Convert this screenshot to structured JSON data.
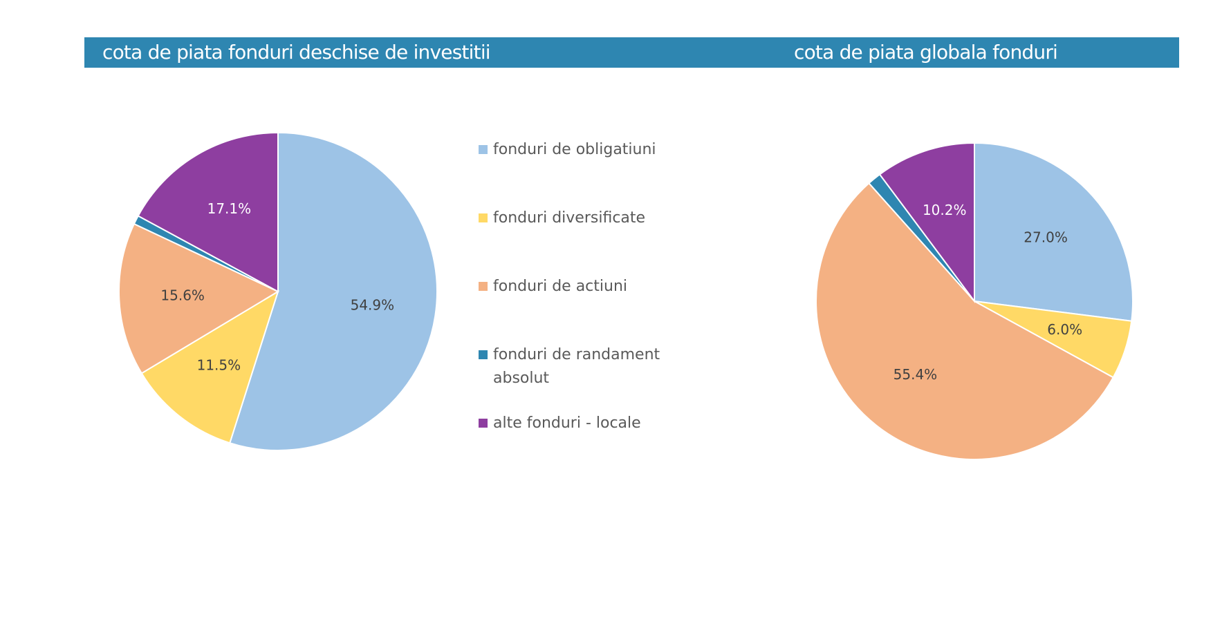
{
  "headers": {
    "left_title": "cota de piata fonduri deschise de investitii",
    "right_title": "cota de piata globala fonduri",
    "band_color": "#2e86b1"
  },
  "legend": {
    "items": [
      {
        "label": "fonduri de obligatiuni",
        "color": "#9dc3e6"
      },
      {
        "label": "fonduri diversificate",
        "color": "#ffd966"
      },
      {
        "label": "fonduri de actiuni",
        "color": "#f4b183"
      },
      {
        "label": "fonduri de randament absolut",
        "color": "#2e86b1"
      },
      {
        "label": "alte fonduri - locale",
        "color": "#8e3ea0"
      }
    ]
  },
  "chart_data": [
    {
      "type": "pie",
      "title": "cota de piata fonduri deschise de investitii",
      "start": "12 o'clock, clockwise",
      "categories": [
        "fonduri de obligatiuni",
        "fonduri diversificate",
        "fonduri de actiuni",
        "fonduri de randament absolut",
        "alte fonduri - locale"
      ],
      "values": [
        54.9,
        11.5,
        15.6,
        0.9,
        17.1
      ],
      "data_labels": [
        "54.9%",
        "11.5%",
        "15.6%",
        "",
        "17.1%"
      ],
      "colors": [
        "#9dc3e6",
        "#ffd966",
        "#f4b183",
        "#2e86b1",
        "#8e3ea0"
      ],
      "label_colors": [
        "#404040",
        "#404040",
        "#404040",
        "#ffffff",
        "#ffffff"
      ],
      "legend": "right"
    },
    {
      "type": "pie",
      "title": "cota de piata globala fonduri",
      "start": "12 o'clock, clockwise",
      "categories": [
        "fonduri de obligatiuni",
        "fonduri diversificate",
        "fonduri de actiuni",
        "fonduri de randament absolut",
        "alte fonduri - locale"
      ],
      "values": [
        27.0,
        6.0,
        55.4,
        1.4,
        10.2
      ],
      "data_labels": [
        "27.0%",
        "6.0%",
        "55.4%",
        "",
        "10.2%"
      ],
      "colors": [
        "#9dc3e6",
        "#ffd966",
        "#f4b183",
        "#2e86b1",
        "#8e3ea0"
      ],
      "label_colors": [
        "#404040",
        "#404040",
        "#404040",
        "#ffffff",
        "#ffffff"
      ],
      "legend": "none"
    }
  ]
}
